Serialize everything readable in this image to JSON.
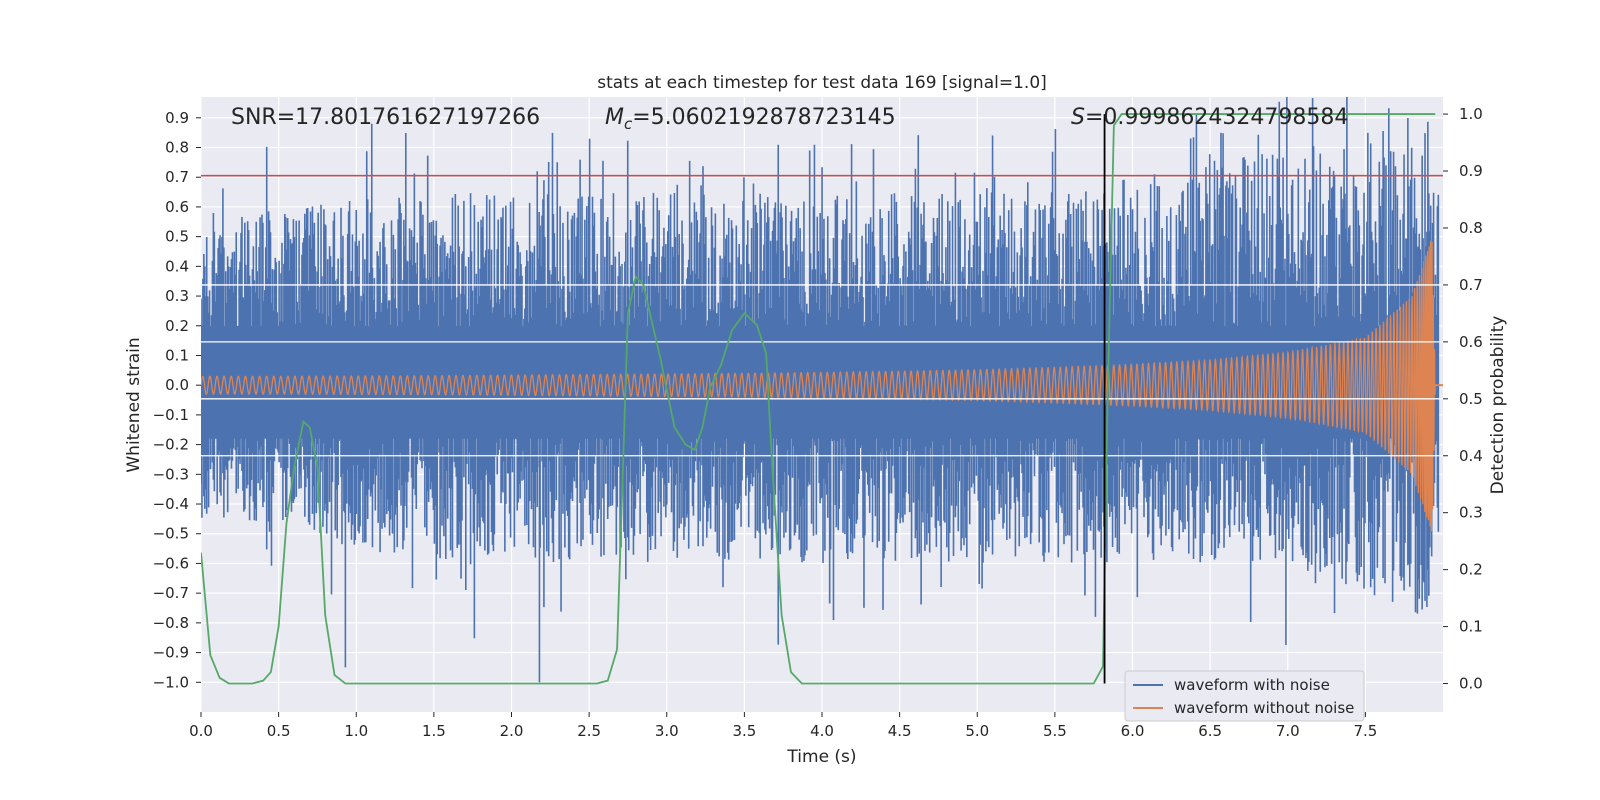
{
  "chart_data": {
    "type": "line",
    "title": "stats at each timestep for test data 169 [signal=1.0]",
    "xlabel": "Time (s)",
    "ylabel_left": "Whitened strain",
    "ylabel_right": "Detection probability",
    "xlim": [
      0.0,
      8.0
    ],
    "ylim_left": [
      -1.1,
      0.97
    ],
    "ylim_right": [
      -0.05,
      1.03
    ],
    "xticks": [
      0.0,
      0.5,
      1.0,
      1.5,
      2.0,
      2.5,
      3.0,
      3.5,
      4.0,
      4.5,
      5.0,
      5.5,
      6.0,
      6.5,
      7.0,
      7.5
    ],
    "xtick_labels": [
      "0.0",
      "0.5",
      "1.0",
      "1.5",
      "2.0",
      "2.5",
      "3.0",
      "3.5",
      "4.0",
      "4.5",
      "5.0",
      "5.5",
      "6.0",
      "6.5",
      "7.0",
      "7.5"
    ],
    "yticks_left": [
      0.9,
      0.8,
      0.7,
      0.6,
      0.5,
      0.4,
      0.3,
      0.2,
      0.1,
      0.0,
      -0.1,
      -0.2,
      -0.3,
      -0.4,
      -0.5,
      -0.6,
      -0.7,
      -0.8,
      -0.9,
      -1.0
    ],
    "ytick_labels_left": [
      "0.9",
      "0.8",
      "0.7",
      "0.6",
      "0.5",
      "0.4",
      "0.3",
      "0.2",
      "0.1",
      "0.0",
      "−0.1",
      "−0.2",
      "−0.3",
      "−0.4",
      "−0.5",
      "−0.6",
      "−0.7",
      "−0.8",
      "−0.9",
      "−1.0"
    ],
    "yticks_right": [
      1.0,
      0.9,
      0.8,
      0.7,
      0.6,
      0.5,
      0.4,
      0.3,
      0.2,
      0.1,
      0.0
    ],
    "ytick_labels_right": [
      "1.0",
      "0.9",
      "0.8",
      "0.7",
      "0.6",
      "0.5",
      "0.4",
      "0.3",
      "0.2",
      "0.1",
      "0.0"
    ],
    "annotations": {
      "snr": "SNR=17.801761627197266",
      "mc_symbol": "M",
      "mc_subscript": "c",
      "mc_value": "=5.0602192878723145",
      "s_symbol": "S",
      "s_value": "=0.9998624324798584"
    },
    "threshold_line": {
      "axis": "left",
      "y": 0.705,
      "color": "#c44e52"
    },
    "marker_line": {
      "x": 5.82,
      "y_range_right": [
        0.0,
        1.0
      ],
      "color": "#000000"
    },
    "series": [
      {
        "name": "waveform with noise",
        "axis": "left",
        "color": "#4c72b0",
        "envelope_min": [
          -0.45,
          -0.5,
          -0.55,
          -0.6,
          -0.6,
          -0.6,
          -0.6,
          -0.6,
          -0.6,
          -0.6,
          -0.6,
          -0.6,
          -0.6,
          -0.6,
          -0.6,
          -0.7
        ],
        "envelope_max": [
          0.55,
          0.6,
          0.65,
          0.65,
          0.65,
          0.65,
          0.65,
          0.65,
          0.65,
          0.65,
          0.65,
          0.65,
          0.7,
          0.75,
          0.8,
          0.85
        ]
      },
      {
        "name": "waveform without noise",
        "axis": "left",
        "color": "#dd8452",
        "amplitude": [
          0.03,
          0.03,
          0.031,
          0.032,
          0.034,
          0.036,
          0.038,
          0.04,
          0.043,
          0.047,
          0.052,
          0.06,
          0.07,
          0.085,
          0.11,
          0.16,
          0.3,
          0.5,
          0.0
        ],
        "amplitude_t": [
          0.0,
          0.5,
          1.0,
          1.5,
          2.0,
          2.5,
          3.0,
          3.5,
          4.0,
          4.5,
          5.0,
          5.5,
          6.0,
          6.5,
          7.0,
          7.5,
          7.8,
          7.93,
          7.95
        ]
      },
      {
        "name": "Detection probability",
        "axis": "right",
        "color": "#55a868",
        "x": [
          0.0,
          0.06,
          0.12,
          0.18,
          0.25,
          0.33,
          0.4,
          0.45,
          0.5,
          0.55,
          0.6,
          0.66,
          0.7,
          0.75,
          0.8,
          0.86,
          0.93,
          1.0,
          1.5,
          2.0,
          2.55,
          2.62,
          2.68,
          2.75,
          2.8,
          2.85,
          2.9,
          2.96,
          3.05,
          3.12,
          3.18,
          3.23,
          3.28,
          3.35,
          3.42,
          3.5,
          3.58,
          3.64,
          3.68,
          3.74,
          3.8,
          3.87,
          3.95,
          4.5,
          5.0,
          5.5,
          5.75,
          5.81,
          5.84,
          5.88,
          5.93,
          6.0,
          6.5,
          7.0,
          7.5,
          7.95
        ],
        "y": [
          0.23,
          0.05,
          0.01,
          0.0,
          0.0,
          0.0,
          0.005,
          0.02,
          0.1,
          0.28,
          0.38,
          0.46,
          0.45,
          0.38,
          0.12,
          0.015,
          0.0,
          0.0,
          0.0,
          0.0,
          0.0,
          0.005,
          0.06,
          0.65,
          0.715,
          0.7,
          0.64,
          0.57,
          0.45,
          0.42,
          0.41,
          0.45,
          0.52,
          0.56,
          0.62,
          0.65,
          0.63,
          0.58,
          0.38,
          0.12,
          0.02,
          0.0,
          0.0,
          0.0,
          0.0,
          0.0,
          0.0,
          0.03,
          0.5,
          0.98,
          1.0,
          1.0,
          1.0,
          1.0,
          1.0,
          1.0
        ]
      }
    ],
    "legend": {
      "placement": "bottom-right",
      "entries": [
        {
          "label": "waveform with noise",
          "color": "#4c72b0"
        },
        {
          "label": "waveform without noise",
          "color": "#dd8452"
        }
      ]
    }
  },
  "colors": {
    "plot_background": "#eaeaf2",
    "grid": "#ffffff",
    "text": "#262626"
  }
}
